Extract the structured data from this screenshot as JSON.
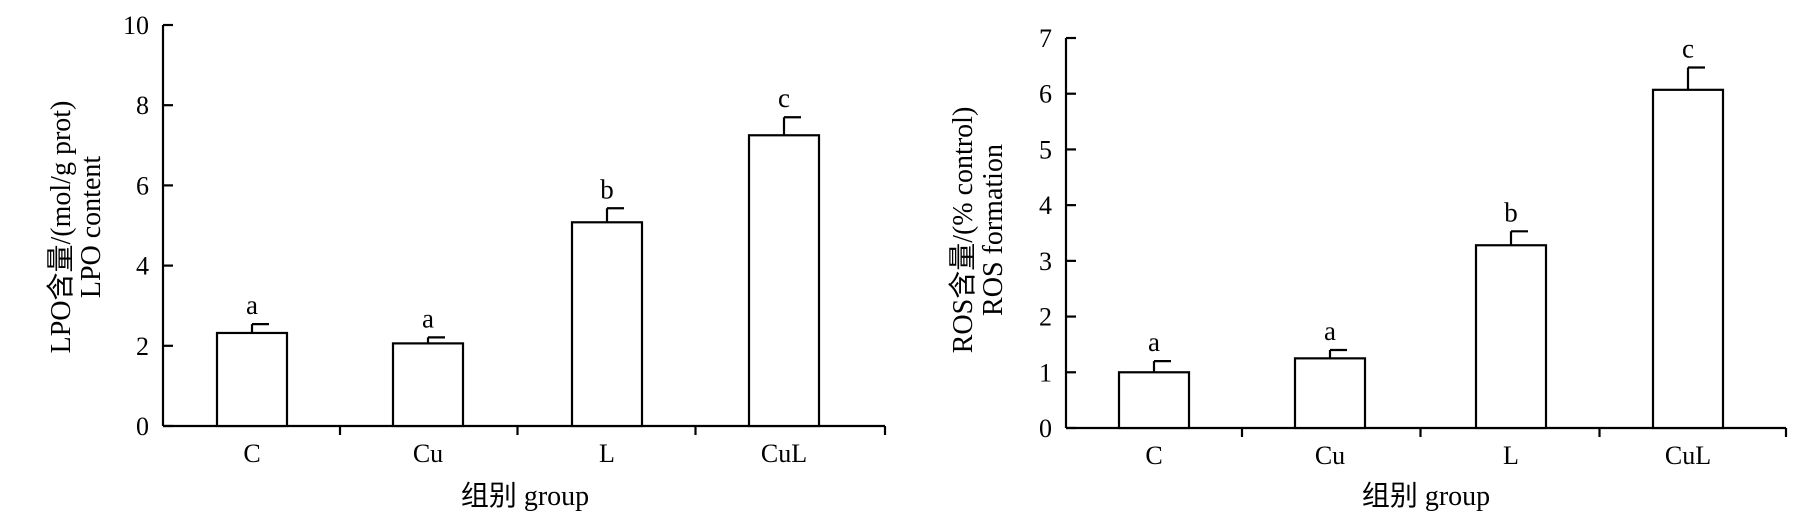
{
  "chart_data": [
    {
      "type": "bar",
      "categories": [
        "C",
        "Cu",
        "L",
        "CuL"
      ],
      "values": [
        2.32,
        2.06,
        5.08,
        7.25
      ],
      "errors": [
        0.22,
        0.15,
        0.35,
        0.45
      ],
      "significance": [
        "a",
        "a",
        "b",
        "c"
      ],
      "ylim": [
        0,
        10
      ],
      "yticks": [
        "0",
        "2",
        "4",
        "6",
        "8",
        "10"
      ],
      "xlabel": "组别 group",
      "ylabel_line1": "LPO含量/(mol/g prot)",
      "ylabel_line2": "LPO content",
      "grid": false,
      "bar_fill": "#ffffff",
      "bar_stroke": "#000000"
    },
    {
      "type": "bar",
      "categories": [
        "C",
        "Cu",
        "L",
        "CuL"
      ],
      "values": [
        1.0,
        1.25,
        3.28,
        6.07
      ],
      "errors": [
        0.2,
        0.15,
        0.25,
        0.4
      ],
      "significance": [
        "a",
        "a",
        "b",
        "c"
      ],
      "ylim": [
        0,
        7
      ],
      "yticks": [
        "0",
        "1",
        "2",
        "3",
        "4",
        "5",
        "6",
        "7"
      ],
      "xlabel": "组别 group",
      "ylabel_line1": "ROS含量/(% control)",
      "ylabel_line2": "ROS formation",
      "grid": false,
      "bar_fill": "#ffffff",
      "bar_stroke": "#000000"
    }
  ]
}
